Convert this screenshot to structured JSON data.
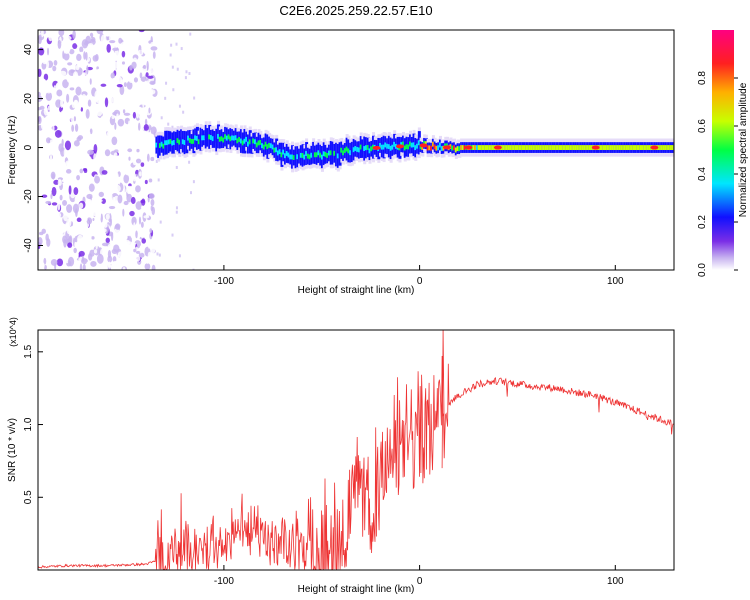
{
  "title": "C2E6.2025.259.22.57.E10",
  "colors": {
    "signal": "#ee3333",
    "axis": "#000000",
    "colormap": [
      "#ffffff",
      "#c8b4f0",
      "#7a2ee6",
      "#1010ff",
      "#00e6ff",
      "#00ff44",
      "#c8ff00",
      "#ffb000",
      "#ff2020",
      "#ff0080"
    ]
  },
  "chart_data": [
    {
      "type": "heatmap",
      "xlabel": "Height of straight line (km)",
      "ylabel": "Frequency (Hz)",
      "xlim": [
        -195,
        130
      ],
      "ylim": [
        -50,
        48
      ],
      "xticks": [
        "-100",
        "0",
        "100"
      ],
      "yticks": [
        "-40",
        "-20",
        "0",
        "20",
        "40"
      ],
      "colorbar": {
        "label": "Normalized spectral amplitude",
        "range": [
          0.0,
          1.0
        ],
        "ticks": [
          "0.0",
          "0.2",
          "0.4",
          "0.6",
          "0.8"
        ]
      },
      "ridge": {
        "x": [
          -135,
          -120,
          -100,
          -80,
          -65,
          -55,
          -45,
          -35,
          -20,
          0,
          15,
          30,
          60,
          130
        ],
        "y": [
          1,
          3,
          4,
          1,
          -4,
          -3,
          -3,
          -1,
          0,
          1,
          0,
          0,
          0,
          0
        ]
      }
    },
    {
      "type": "line",
      "xlabel": "Height of straight line (km)",
      "ylabel": "SNR (10 * v/v)",
      "y_multiplier": "(x10^4)",
      "xlim": [
        -195,
        130
      ],
      "ylim": [
        0,
        1.65
      ],
      "xticks": [
        "-100",
        "0",
        "100"
      ],
      "yticks": [
        "0.5",
        "1.0",
        "1.5"
      ],
      "series": [
        {
          "x": [
            -195,
            -180,
            -160,
            -140,
            -130,
            -120,
            -110,
            -100,
            -90,
            -85,
            -80,
            -70,
            -60,
            -50,
            -40,
            -35,
            -30,
            -25,
            -20,
            -15,
            -10,
            -5,
            0,
            5,
            10,
            15,
            20,
            30,
            40,
            50,
            60,
            70,
            80,
            90,
            100,
            110,
            120,
            130
          ],
          "y": [
            0.02,
            0.03,
            0.03,
            0.04,
            0.08,
            0.12,
            0.18,
            0.2,
            0.25,
            0.3,
            0.2,
            0.15,
            0.12,
            0.2,
            0.25,
            0.4,
            0.5,
            0.45,
            0.6,
            0.8,
            0.75,
            0.9,
            0.95,
            1.0,
            1.1,
            1.15,
            1.2,
            1.28,
            1.3,
            1.28,
            1.26,
            1.25,
            1.22,
            1.2,
            1.15,
            1.1,
            1.05,
            1.0
          ]
        }
      ]
    }
  ]
}
